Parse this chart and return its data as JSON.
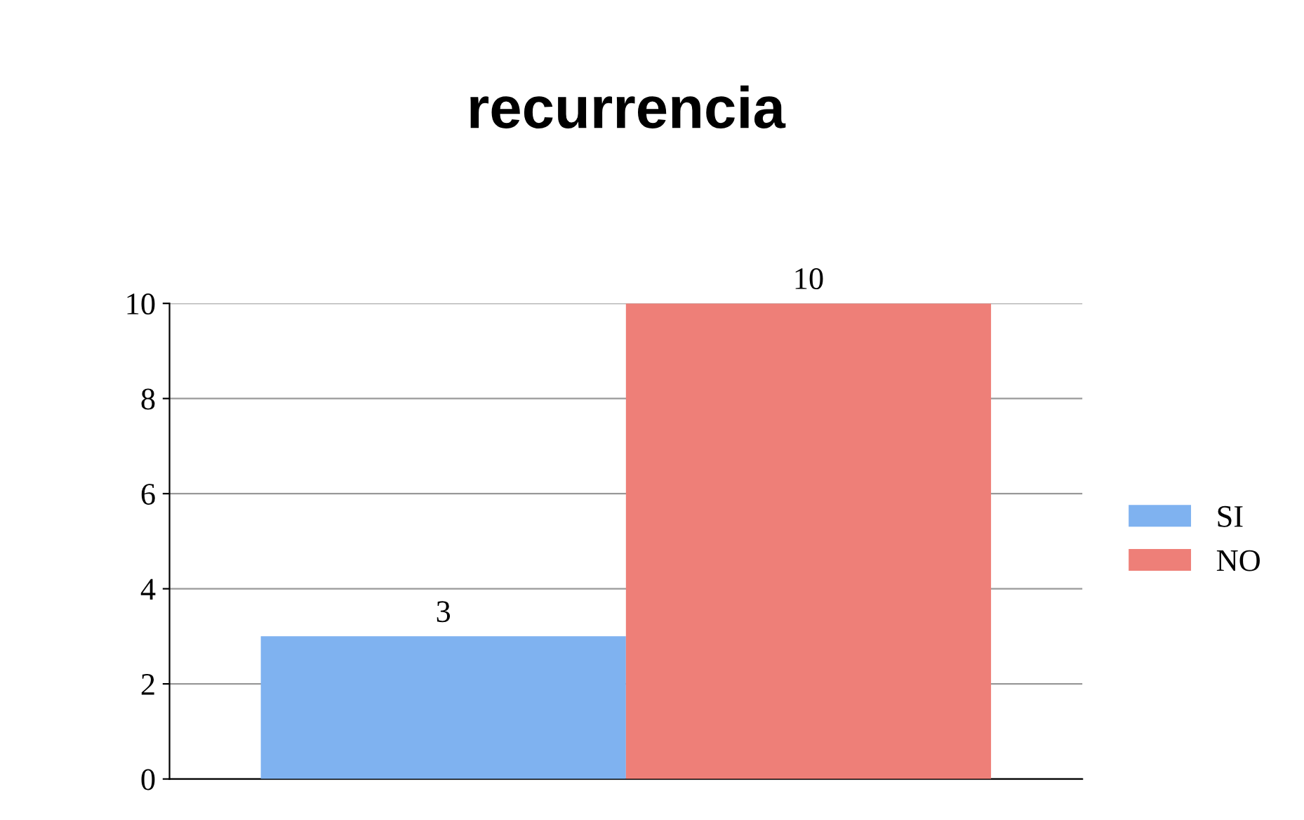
{
  "chart_data": {
    "type": "bar",
    "title": "recurrencia",
    "categories": [
      null
    ],
    "series": [
      {
        "name": "SI",
        "color": "#7fb2f0",
        "values": [
          3
        ]
      },
      {
        "name": "NO",
        "color": "#ee7f78",
        "values": [
          10
        ]
      }
    ],
    "ylim": [
      0,
      10
    ],
    "yticks": [
      0,
      2,
      4,
      6,
      8,
      10
    ],
    "grid": "y",
    "legend": "right",
    "data_labels": true
  }
}
